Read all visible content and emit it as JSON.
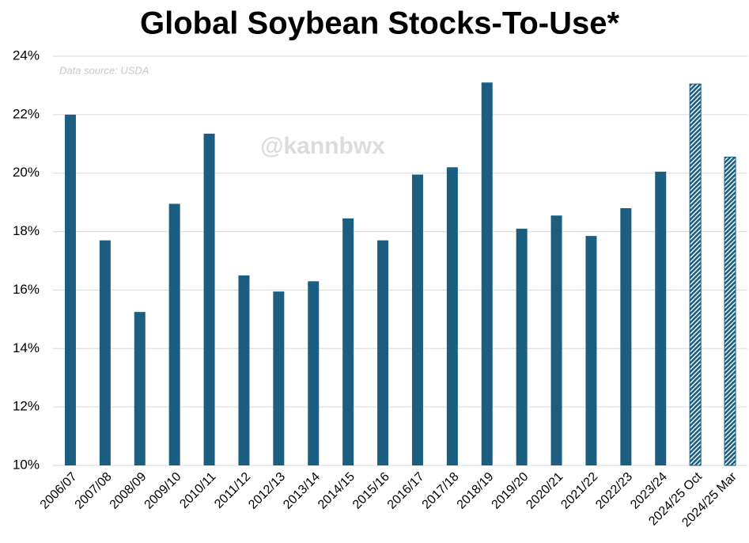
{
  "chart_data": {
    "type": "bar",
    "title": "Global Soybean Stocks-To-Use*",
    "annotations": [
      "Data source: USDA",
      "@kannbwx"
    ],
    "categories": [
      "2006/07",
      "2007/08",
      "2008/09",
      "2009/10",
      "2010/11",
      "2011/12",
      "2012/13",
      "2013/14",
      "2014/15",
      "2015/16",
      "2016/17",
      "2017/18",
      "2018/19",
      "2019/20",
      "2020/21",
      "2021/22",
      "2022/23",
      "2023/24",
      "2024/25 Oct",
      "2024/25 Mar"
    ],
    "values": [
      22.0,
      17.7,
      15.25,
      18.95,
      21.35,
      16.5,
      15.95,
      16.3,
      18.45,
      17.7,
      19.95,
      20.2,
      23.1,
      18.1,
      18.55,
      17.85,
      18.8,
      20.05,
      23.05,
      20.55
    ],
    "bar_pattern": [
      "solid",
      "solid",
      "solid",
      "solid",
      "solid",
      "solid",
      "solid",
      "solid",
      "solid",
      "solid",
      "solid",
      "solid",
      "solid",
      "solid",
      "solid",
      "solid",
      "solid",
      "solid",
      "hatched",
      "hatched"
    ],
    "color": "#1b5e80",
    "ylim": [
      10,
      24
    ],
    "yticks": [
      {
        "value": 10,
        "label": "10%"
      },
      {
        "value": 12,
        "label": "12%"
      },
      {
        "value": 14,
        "label": "14%"
      },
      {
        "value": 16,
        "label": "16%"
      },
      {
        "value": 18,
        "label": "18%"
      },
      {
        "value": 20,
        "label": "20%"
      },
      {
        "value": 22,
        "label": "22%"
      },
      {
        "value": 24,
        "label": "24%"
      }
    ],
    "grid": true
  }
}
